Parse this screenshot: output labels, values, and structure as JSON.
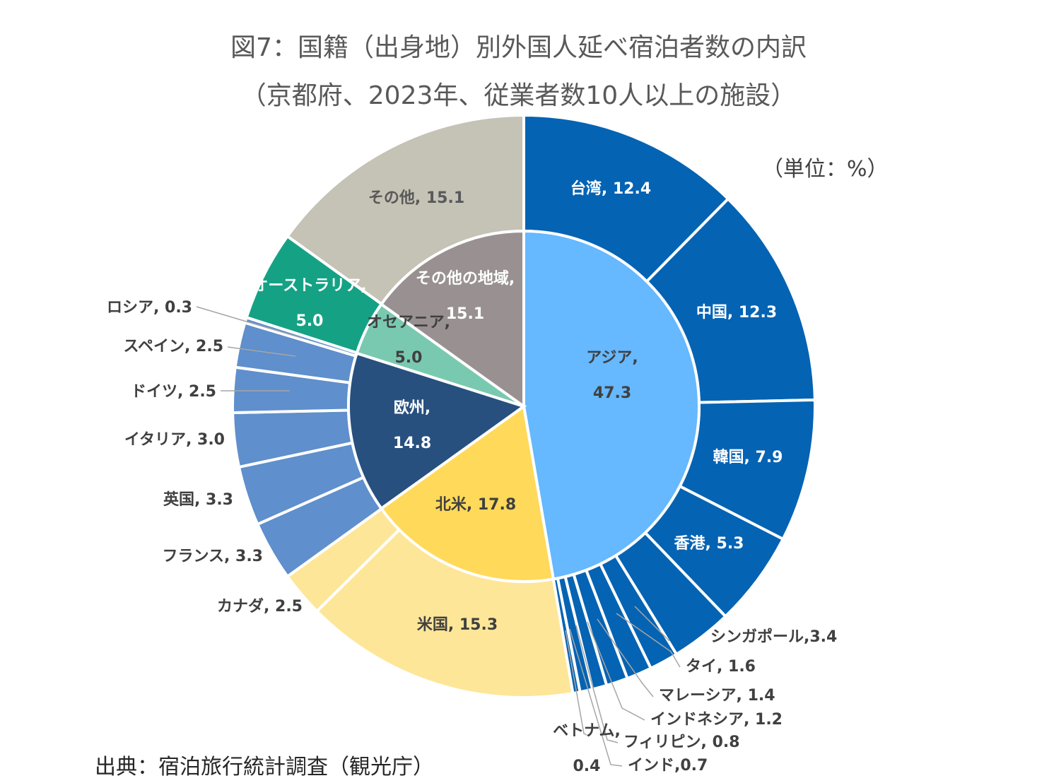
{
  "title_line1": "図7：国籍（出身地）別外国人延べ宿泊者数の内訳",
  "title_line2": "（京都府、2023年、従業者数10人以上の施設）",
  "unit_label": "（単位：%）",
  "source": "出典：宿泊旅行統計調査（観光庁）",
  "chart_data": {
    "type": "pie",
    "variant": "sunburst",
    "unit": "%",
    "inner": [
      {
        "name": "アジア",
        "value": 47.3,
        "color": "#66b8ff",
        "label_lines": [
          "アジア,",
          "47.3"
        ],
        "text_color": "#404040"
      },
      {
        "name": "北米",
        "value": 17.8,
        "color": "#ffd95a",
        "label_lines": [
          "北米, 17.8"
        ],
        "text_color": "#404040"
      },
      {
        "name": "欧州",
        "value": 14.8,
        "color": "#27507f",
        "label_lines": [
          "欧州,",
          "14.8"
        ],
        "text_color": "#ffffff"
      },
      {
        "name": "オセアニア",
        "value": 5.0,
        "color": "#79c9b0",
        "label_lines": [
          "オセアニア,",
          "5.0"
        ],
        "text_color": "#404040"
      },
      {
        "name": "その他の地域",
        "value": 15.1,
        "color": "#999191",
        "label_lines": [
          "その他の地域,",
          "15.1"
        ],
        "text_color": "#ffffff"
      }
    ],
    "outer": [
      {
        "name": "台湾",
        "value": 12.4,
        "group": "アジア",
        "color": "#0563b3",
        "label": "台湾, 12.4",
        "text_color": "#ffffff",
        "placement": "inside"
      },
      {
        "name": "中国",
        "value": 12.3,
        "group": "アジア",
        "color": "#0563b3",
        "label": "中国, 12.3",
        "text_color": "#ffffff",
        "placement": "inside"
      },
      {
        "name": "韓国",
        "value": 7.9,
        "group": "アジア",
        "color": "#0563b3",
        "label": "韓国, 7.9",
        "text_color": "#ffffff",
        "placement": "inside"
      },
      {
        "name": "香港",
        "value": 5.3,
        "group": "アジア",
        "color": "#0563b3",
        "label": "香港, 5.3",
        "text_color": "#ffffff",
        "placement": "inside"
      },
      {
        "name": "シンガポール",
        "value": 3.4,
        "group": "アジア",
        "color": "#0563b3",
        "label": "シンガポール,3.4",
        "text_color": "#404040",
        "placement": "leader-right"
      },
      {
        "name": "タイ",
        "value": 1.6,
        "group": "アジア",
        "color": "#0563b3",
        "label": "タイ, 1.6",
        "text_color": "#404040",
        "placement": "leader-right"
      },
      {
        "name": "マレーシア",
        "value": 1.4,
        "group": "アジア",
        "color": "#0563b3",
        "label": "マレーシア, 1.4",
        "text_color": "#404040",
        "placement": "leader-right"
      },
      {
        "name": "インドネシア",
        "value": 1.2,
        "group": "アジア",
        "color": "#0563b3",
        "label": "インドネシア, 1.2",
        "text_color": "#404040",
        "placement": "leader-right"
      },
      {
        "name": "フィリピン",
        "value": 0.8,
        "group": "アジア",
        "color": "#0563b3",
        "label": "フィリピン, 0.8",
        "text_color": "#404040",
        "placement": "leader-right"
      },
      {
        "name": "インド",
        "value": 0.7,
        "group": "アジア",
        "color": "#0563b3",
        "label": "インド,0.7",
        "text_color": "#404040",
        "placement": "leader-right"
      },
      {
        "name": "ベトナム",
        "value": 0.4,
        "group": "アジア",
        "color": "#0563b3",
        "label_lines": [
          "ベトナム,",
          "0.4"
        ],
        "text_color": "#404040",
        "placement": "leader-left"
      },
      {
        "name": "米国",
        "value": 15.3,
        "group": "北米",
        "color": "#fee699",
        "label": "米国, 15.3",
        "text_color": "#404040",
        "placement": "inside"
      },
      {
        "name": "カナダ",
        "value": 2.5,
        "group": "北米",
        "color": "#fee699",
        "label": "カナダ, 2.5",
        "text_color": "#404040",
        "placement": "outside-left"
      },
      {
        "name": "フランス",
        "value": 3.3,
        "group": "欧州",
        "color": "#5f8fcc",
        "label": "フランス, 3.3",
        "text_color": "#404040",
        "placement": "outside-left"
      },
      {
        "name": "英国",
        "value": 3.3,
        "group": "欧州",
        "color": "#5f8fcc",
        "label": "英国, 3.3",
        "text_color": "#404040",
        "placement": "outside-left"
      },
      {
        "name": "イタリア",
        "value": 3.0,
        "group": "欧州",
        "color": "#5f8fcc",
        "label": "イタリア, 3.0",
        "text_color": "#404040",
        "placement": "outside-left"
      },
      {
        "name": "ドイツ",
        "value": 2.5,
        "group": "欧州",
        "color": "#5f8fcc",
        "label": "ドイツ, 2.5",
        "text_color": "#404040",
        "placement": "leader-left"
      },
      {
        "name": "スペイン",
        "value": 2.5,
        "group": "欧州",
        "color": "#5f8fcc",
        "label": "スペイン, 2.5",
        "text_color": "#404040",
        "placement": "leader-left"
      },
      {
        "name": "ロシア",
        "value": 0.3,
        "group": "欧州",
        "color": "#5f8fcc",
        "label": "ロシア, 0.3",
        "text_color": "#404040",
        "placement": "leader-left"
      },
      {
        "name": "オーストラリア",
        "value": 5.0,
        "group": "オセアニア",
        "color": "#15a284",
        "label_lines": [
          "オーストラリア,",
          "5.0"
        ],
        "text_color": "#ffffff",
        "placement": "inside"
      },
      {
        "name": "その他",
        "value": 15.1,
        "group": "その他の地域",
        "color": "#c5c2b6",
        "label": "その他, 15.1",
        "text_color": "#595959",
        "placement": "inside"
      }
    ]
  }
}
